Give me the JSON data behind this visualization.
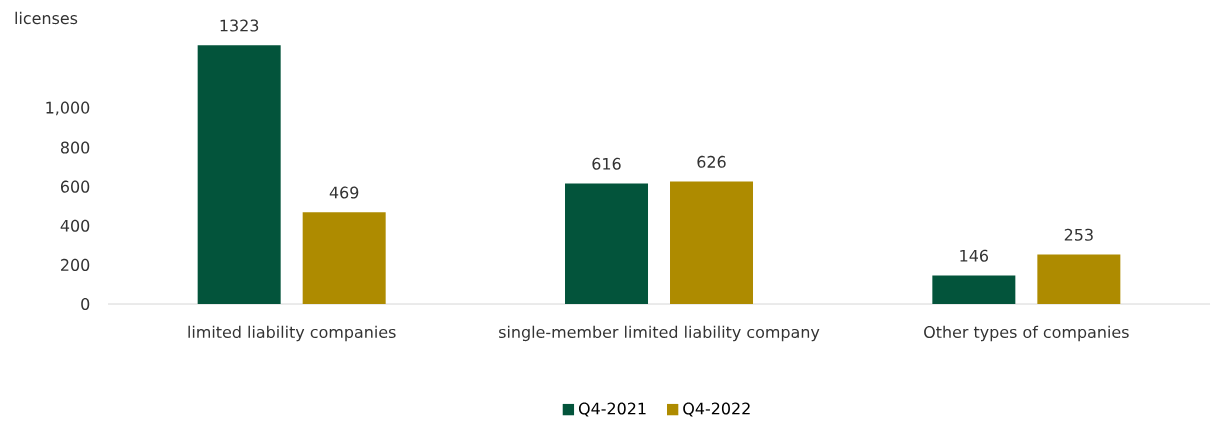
{
  "chart_data": {
    "type": "bar",
    "ylabel": "licenses",
    "categories": [
      "limited liability companies",
      "single-member limited liability company",
      "Other types of companies"
    ],
    "series": [
      {
        "name": "Q4-2021",
        "color": "#03543b",
        "values": [
          1323,
          616,
          146
        ]
      },
      {
        "name": "Q4-2022",
        "color": "#ae8b00",
        "values": [
          469,
          626,
          253
        ]
      }
    ],
    "ylim": [
      0,
      1350
    ],
    "yticks": [
      0,
      200,
      400,
      600,
      800,
      {
        "value": 1000,
        "label": "1,000"
      }
    ],
    "data_labels": true,
    "legend": "bottom"
  }
}
